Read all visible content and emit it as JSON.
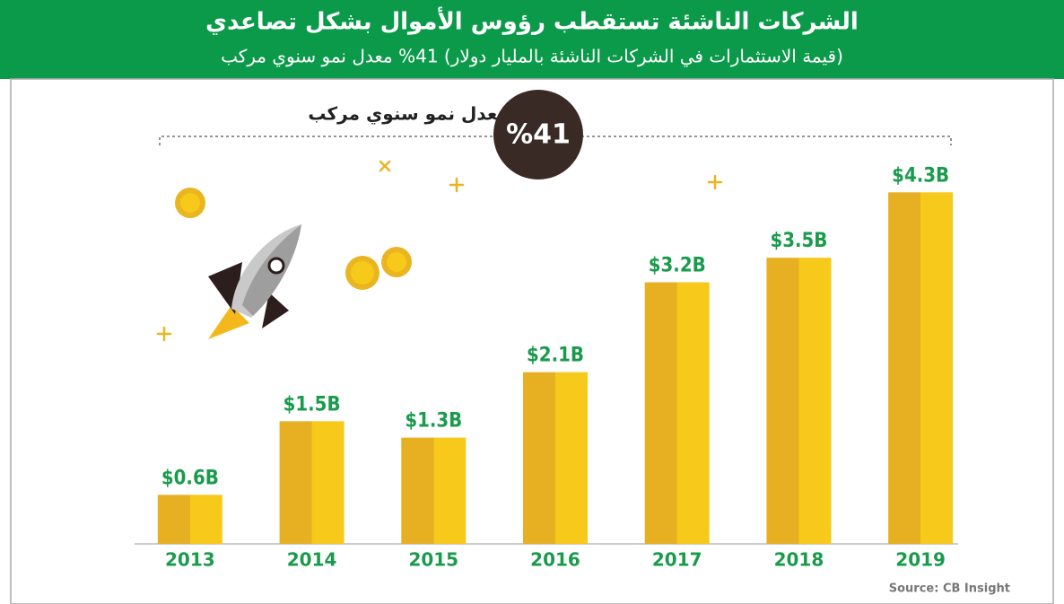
{
  "chart_data": {
    "type": "bar",
    "title": "الشركات الناشئة تستقطب رؤوس الأموال بشكل تصاعدي",
    "subtitle": "(قيمة الاستثمارات في الشركات الناشئة بالمليار دولار) 41% معدل نمو سنوي مركب",
    "annotation": {
      "label": "معدل نمو سنوي مركب",
      "value": "%41"
    },
    "source": "Source: CB Insight",
    "categories": [
      "2013",
      "2014",
      "2015",
      "2016",
      "2017",
      "2018",
      "2019"
    ],
    "values": [
      0.6,
      1.5,
      1.3,
      2.1,
      3.2,
      3.5,
      4.3
    ],
    "value_labels": [
      "$0.6B",
      "$1.5B",
      "$1.3B",
      "$2.1B",
      "$3.2B",
      "$3.5B",
      "$4.3B"
    ],
    "color": "#f5c518",
    "ylim": [
      0,
      4.6
    ]
  }
}
